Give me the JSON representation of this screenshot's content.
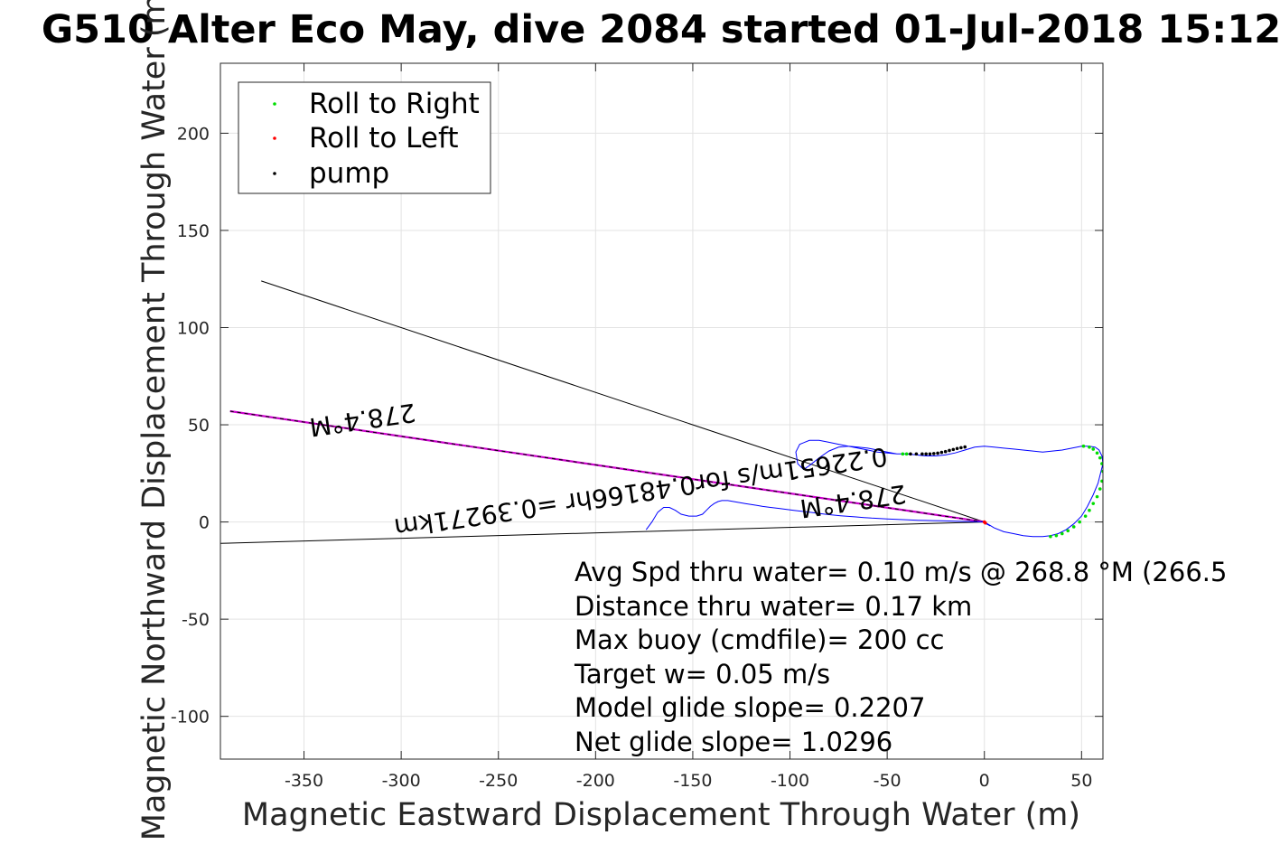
{
  "chart_data": {
    "type": "scatter",
    "title": "G510 Alter Eco May, dive 2084 started 01-Jul-2018 15:12",
    "xlabel": "Magnetic Eastward Displacement Through Water (m)",
    "ylabel": "Magnetic Northward Displacement Through Water (m)",
    "xlim": [
      -393,
      61
    ],
    "ylim": [
      -122,
      236
    ],
    "xticks": [
      -350,
      -300,
      -250,
      -200,
      -150,
      -100,
      -50,
      0,
      50
    ],
    "yticks": [
      200,
      150,
      100,
      50,
      0,
      -50,
      -100
    ],
    "grid": true,
    "legend_placement": "top-left",
    "legend": [
      {
        "name": "Roll to Right",
        "color": "#00dd00"
      },
      {
        "name": "Roll to Left",
        "color": "#ff0000"
      },
      {
        "name": "pump",
        "color": "#000000"
      }
    ],
    "lines": [
      {
        "color": "#000000",
        "x": [
          0,
          -372
        ],
        "y": [
          0,
          124
        ]
      },
      {
        "color": "#000000",
        "x": [
          0,
          -393
        ],
        "y": [
          0,
          -11
        ]
      },
      {
        "color": "#cc00cc",
        "x": [
          0,
          -388
        ],
        "y": [
          0,
          57
        ]
      },
      {
        "color": "#000000",
        "x": [
          0,
          -388
        ],
        "y": [
          0,
          57
        ]
      }
    ],
    "track": {
      "color": "#0000ff",
      "x": [
        -174,
        -171,
        -168,
        -165,
        -162,
        -159,
        -156,
        -152,
        -148,
        -145,
        -143,
        -141,
        -139,
        -137,
        -135,
        -132,
        -129,
        -126,
        -123,
        -120,
        -117,
        -114,
        -110,
        -106,
        -102,
        -98,
        -94,
        -90,
        -86,
        -82,
        -78,
        -74,
        -70,
        -66,
        -62,
        -58,
        -54,
        -50,
        -46,
        -42,
        -38,
        -34,
        -30,
        -26,
        -22,
        -18,
        -14,
        -10,
        -6,
        -2,
        0,
        1,
        3
      ],
      "y": [
        -4,
        0,
        5,
        7.5,
        7.5,
        6,
        4,
        3,
        3,
        4,
        6,
        8,
        9.5,
        10.5,
        11,
        11,
        10.5,
        10,
        9.5,
        9,
        8.5,
        8,
        7.5,
        7,
        6.5,
        6,
        5.5,
        5,
        4.5,
        4,
        3.6,
        3.2,
        2.9,
        2.6,
        2.3,
        2.0,
        1.8,
        1.6,
        1.4,
        1.2,
        1.0,
        0.9,
        0.8,
        0.7,
        0.6,
        0.5,
        0.4,
        0.3,
        0.2,
        0.1,
        0,
        -1,
        -2
      ]
    },
    "loop": {
      "color": "#0000ff",
      "x": [
        0,
        5,
        10,
        15,
        20,
        25,
        30,
        34,
        38,
        42,
        46,
        50,
        53,
        56,
        58.5,
        60,
        61,
        60.5,
        59,
        57,
        54,
        50,
        45,
        40,
        35,
        30,
        25,
        20,
        15,
        10,
        5,
        0,
        -5,
        -10,
        -15,
        -20,
        -25,
        -30,
        -35,
        -40,
        -45,
        -50,
        -55,
        -60,
        -65,
        -70,
        -75,
        -80,
        -85,
        -90,
        -95,
        -97,
        -96,
        -93,
        -90,
        -85,
        -80,
        -75,
        -70,
        -65,
        -60,
        -55,
        -50,
        -45,
        -42
      ],
      "y": [
        0,
        -3,
        -5,
        -6,
        -7,
        -7.5,
        -7.5,
        -7,
        -6,
        -4,
        -1,
        3,
        8,
        14,
        20,
        26,
        30,
        34,
        37,
        38.5,
        39,
        39,
        38,
        37,
        36.5,
        36,
        36.5,
        37,
        37.5,
        38,
        38.5,
        39,
        38.5,
        37,
        35.5,
        34.5,
        34,
        34,
        34.5,
        35,
        35,
        35.5,
        36,
        37,
        38,
        39,
        40,
        41,
        42,
        42,
        40,
        36,
        30,
        27,
        29,
        33,
        36.5,
        38.5,
        39,
        38.5,
        38,
        37,
        36,
        35,
        35
      ]
    },
    "roll_right": {
      "x": [
        34,
        37,
        40,
        43,
        46,
        49,
        52,
        54,
        56,
        58,
        59.5,
        60.5,
        61,
        60.5,
        59.5,
        58,
        56,
        54,
        51,
        -42,
        -40
      ],
      "y": [
        -7.5,
        -7,
        -6,
        -4.5,
        -2.5,
        0,
        3,
        6,
        9.5,
        13,
        17,
        21,
        26,
        30,
        33,
        35.5,
        37.5,
        38.5,
        39,
        35,
        35
      ]
    },
    "roll_left": {
      "x": [
        0,
        0.5
      ],
      "y": [
        0,
        -0.5
      ]
    },
    "pump": {
      "x": [
        -38,
        -35,
        -32,
        -30,
        -28,
        -26,
        -24,
        -22,
        -20,
        -18,
        -16,
        -14,
        -12,
        -10
      ],
      "y": [
        35,
        35,
        35,
        35,
        35,
        35.2,
        35.4,
        35.8,
        36.2,
        36.8,
        37.3,
        37.8,
        38.2,
        38.6
      ]
    },
    "heading_labels": [
      {
        "text": "278.4°M"
      },
      {
        "text": "278.4°M"
      },
      {
        "text": "0.22651m/s for0.48166hr =0.39271km"
      }
    ],
    "stats": [
      "Avg Spd thru water=  0.10 m/s @ 268.8 °M (266.5",
      "Distance thru water=  0.17 km",
      "Max buoy (cmdfile)= 200 cc",
      "Target w= 0.05 m/s",
      "Model glide slope= 0.2207",
      "Net glide slope= 1.0296"
    ]
  }
}
